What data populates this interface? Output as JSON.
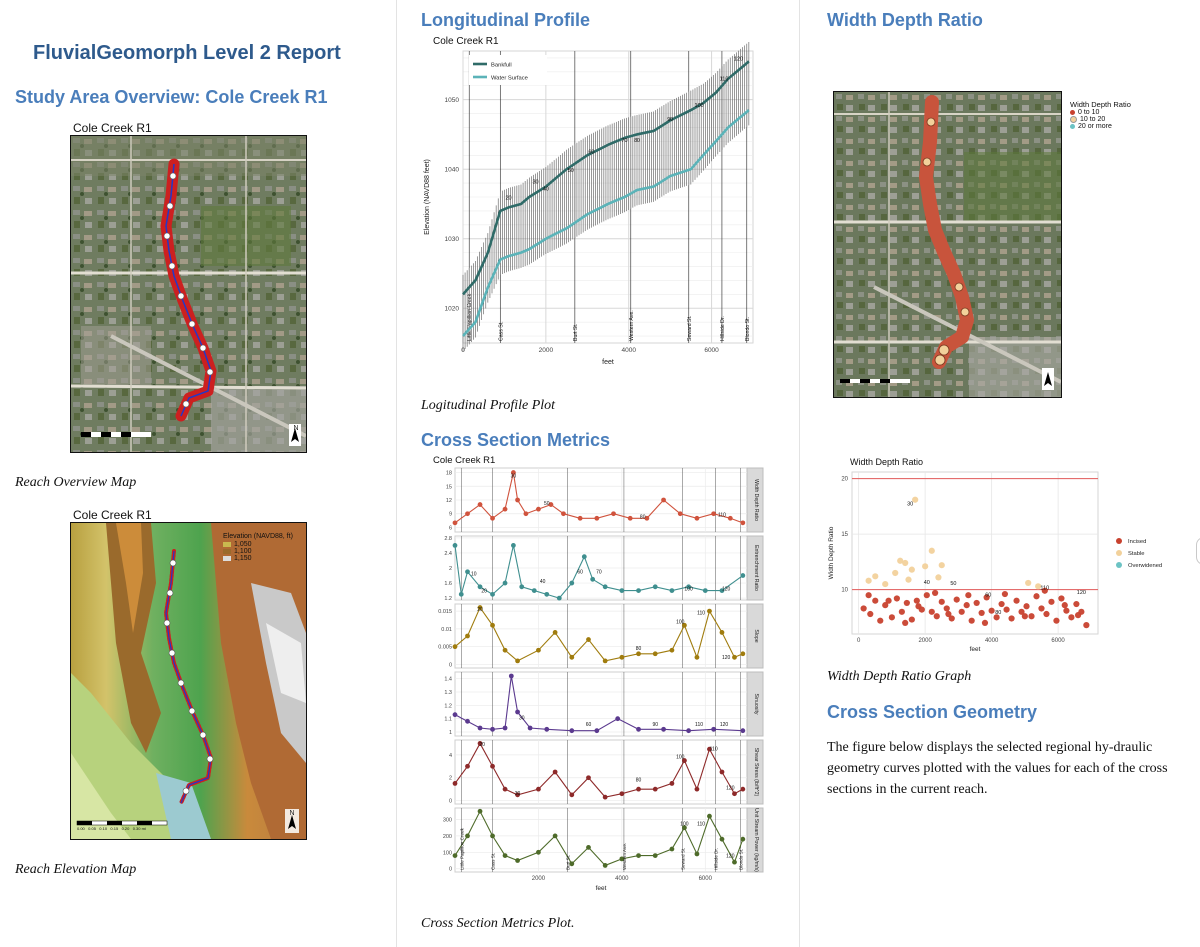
{
  "report": {
    "title": "FluvialGeomorph Level 2 Report"
  },
  "col1": {
    "study_heading": "Study Area Overview: Cole Creek R1",
    "overview_map": {
      "title": "Cole Creek R1",
      "caption": "Reach Overview Map",
      "north": "N"
    },
    "elevation_map": {
      "title": "Cole Creek R1",
      "caption": "Reach Elevation Map",
      "legend_title": "Elevation (NAVD88, ft)",
      "legend_items": [
        "1,050",
        "1,100",
        "1,150"
      ],
      "scale_labels": [
        "0.00",
        "0.05",
        "0.10",
        "0.15",
        "0.20",
        "0.30 mi"
      ],
      "north": "N"
    }
  },
  "col2": {
    "long_heading": "Longitudinal Profile",
    "long_caption": "Logitudinal Profile Plot",
    "xs_heading": "Cross Section Metrics",
    "xs_caption": "Cross Section Metrics Plot."
  },
  "col3": {
    "wdr_heading": "Width Depth Ratio",
    "wdr_map_legend_title": "Width Depth Ratio",
    "wdr_map_legend_items": [
      "0 to 10",
      "10 to 20",
      "20 or more"
    ],
    "wdr_caption": "Width Depth Ratio Graph",
    "geom_heading": "Cross Section Geometry",
    "geom_paragraph": "The figure below displays the selected regional hy-draulic geometry curves plotted with the values for each of the cross sections in the current reach."
  },
  "colors": {
    "title_blue": "#2E5A8C",
    "heading_blue": "#4A7EBB",
    "bankfull": "#2F6B68",
    "water_surface": "#5BB3B8",
    "incised": "#C8412E",
    "stable": "#F2D19B",
    "overwidened": "#6CC3C4"
  },
  "chart_data": [
    {
      "id": "longitudinal_profile",
      "type": "line",
      "title": "Cole Creek R1",
      "xlabel": "feet",
      "ylabel": "Elevation (NAVD88 feet)",
      "xlim": [
        0,
        7000
      ],
      "ylim": [
        1015,
        1057
      ],
      "x_ticks": [
        0,
        2000,
        4000,
        6000
      ],
      "y_ticks": [
        1020,
        1030,
        1040,
        1050
      ],
      "legend": [
        "Bankfull",
        "Water Surface"
      ],
      "legend_position": "top-left",
      "grid": true,
      "series": [
        {
          "name": "Bankfull",
          "x": [
            0,
            300,
            600,
            900,
            1100,
            1400,
            1600,
            2000,
            2500,
            3000,
            3500,
            3900,
            4200,
            4600,
            5000,
            5500,
            5800,
            6100,
            6400,
            6700,
            6900
          ],
          "y": [
            1022,
            1024,
            1028,
            1034,
            1034.5,
            1035,
            1036,
            1037.5,
            1040,
            1042,
            1043.5,
            1044.5,
            1045,
            1045.5,
            1047,
            1048.5,
            1049.5,
            1051,
            1053,
            1054.5,
            1055.5
          ]
        },
        {
          "name": "Water Surface",
          "x": [
            0,
            300,
            600,
            900,
            1100,
            1400,
            1600,
            2000,
            2500,
            3000,
            3500,
            3900,
            4200,
            4600,
            5000,
            5500,
            5800,
            6100,
            6400,
            6700,
            6900
          ],
          "y": [
            1016,
            1018,
            1023,
            1027,
            1027.5,
            1028,
            1028.5,
            1030,
            1031.5,
            1033.5,
            1035,
            1036,
            1037,
            1037.5,
            1039,
            1040,
            1042,
            1044,
            1046,
            1047.5,
            1048.5
          ]
        }
      ],
      "point_labels": [
        {
          "x": 1100,
          "y": 1035.2,
          "label": "20"
        },
        {
          "x": 1750,
          "y": 1037.5,
          "label": "30"
        },
        {
          "x": 2000,
          "y": 1036.5,
          "label": "40"
        },
        {
          "x": 2600,
          "y": 1039.2,
          "label": "50"
        },
        {
          "x": 3100,
          "y": 1041.8,
          "label": "60"
        },
        {
          "x": 3900,
          "y": 1043.5,
          "label": "70"
        },
        {
          "x": 4200,
          "y": 1043.5,
          "label": "80"
        },
        {
          "x": 5000,
          "y": 1046.5,
          "label": "90"
        },
        {
          "x": 5700,
          "y": 1048.5,
          "label": "100"
        },
        {
          "x": 6300,
          "y": 1052.3,
          "label": "110"
        },
        {
          "x": 6650,
          "y": 1055.2,
          "label": "120"
        }
      ],
      "features": [
        {
          "x": 150,
          "label": "Little Papillion Creek"
        },
        {
          "x": 900,
          "label": "Cass St."
        },
        {
          "x": 2700,
          "label": "Burt St."
        },
        {
          "x": 4050,
          "label": "Western Ave."
        },
        {
          "x": 5450,
          "label": "Seward St."
        },
        {
          "x": 6250,
          "label": "Hillside Dr."
        },
        {
          "x": 6850,
          "label": "Blondo St."
        }
      ]
    },
    {
      "id": "cross_section_metrics",
      "type": "line",
      "title": "Cole Creek R1",
      "xlabel": "feet",
      "xlim": [
        0,
        7000
      ],
      "x_ticks": [
        2000,
        4000,
        6000
      ],
      "grid": true,
      "features": [
        {
          "x": 150,
          "label": "Little Papillion Creek"
        },
        {
          "x": 900,
          "label": "Cass St."
        },
        {
          "x": 2700,
          "label": "Burt St."
        },
        {
          "x": 4050,
          "label": "Western Ave."
        },
        {
          "x": 5450,
          "label": "Seward St."
        },
        {
          "x": 6250,
          "label": "Hillside Dr."
        },
        {
          "x": 6850,
          "label": "Blondo St."
        }
      ],
      "facets": [
        {
          "name": "Width Depth Ratio",
          "color": "#D0533D",
          "ylim": [
            5,
            19
          ],
          "y_ticks": [
            6,
            9,
            12,
            15,
            18
          ],
          "x": [
            0,
            300,
            600,
            900,
            1200,
            1400,
            1500,
            1700,
            2000,
            2300,
            2600,
            3000,
            3400,
            3800,
            4200,
            4600,
            5000,
            5400,
            5800,
            6200,
            6600,
            6900
          ],
          "y": [
            7,
            9,
            11,
            8,
            10,
            18,
            12,
            9,
            10,
            11,
            9,
            8,
            8,
            9,
            8,
            8,
            12,
            9,
            8,
            9,
            8,
            7
          ],
          "labels": [
            {
              "x": 1400,
              "y": 16.5,
              "t": "30"
            },
            {
              "x": 2200,
              "y": 10.5,
              "t": "50"
            },
            {
              "x": 4500,
              "y": 7.5,
              "t": "80"
            },
            {
              "x": 6400,
              "y": 8,
              "t": "110"
            }
          ]
        },
        {
          "name": "Entrenchment Ratio",
          "color": "#3F8F8F",
          "ylim": [
            1.15,
            2.85
          ],
          "y_ticks": [
            1.2,
            1.6,
            2.0,
            2.4,
            2.8
          ],
          "x": [
            0,
            150,
            300,
            600,
            900,
            1200,
            1400,
            1600,
            1900,
            2200,
            2500,
            2800,
            3100,
            3300,
            3600,
            4000,
            4400,
            4800,
            5200,
            5600,
            6000,
            6400,
            6900
          ],
          "y": [
            2.6,
            1.3,
            1.9,
            1.5,
            1.3,
            1.6,
            2.6,
            1.5,
            1.4,
            1.3,
            1.2,
            1.6,
            2.3,
            1.7,
            1.5,
            1.4,
            1.4,
            1.5,
            1.4,
            1.5,
            1.4,
            1.4,
            1.8
          ],
          "labels": [
            {
              "x": 450,
              "y": 1.75,
              "t": "10"
            },
            {
              "x": 700,
              "y": 1.3,
              "t": "20"
            },
            {
              "x": 2100,
              "y": 1.55,
              "t": "40"
            },
            {
              "x": 3000,
              "y": 1.8,
              "t": "60"
            },
            {
              "x": 3450,
              "y": 1.8,
              "t": "70"
            },
            {
              "x": 5600,
              "y": 1.35,
              "t": "100"
            },
            {
              "x": 6500,
              "y": 1.35,
              "t": "120"
            }
          ]
        },
        {
          "name": "Slope",
          "color": "#A07C0E",
          "ylim": [
            -0.001,
            0.017
          ],
          "y_ticks": [
            0.0,
            0.005,
            0.01,
            0.015
          ],
          "x": [
            0,
            300,
            600,
            900,
            1200,
            1500,
            2000,
            2400,
            2800,
            3200,
            3600,
            4000,
            4400,
            4800,
            5200,
            5500,
            5800,
            6100,
            6400,
            6700,
            6900
          ],
          "y": [
            0.005,
            0.008,
            0.016,
            0.011,
            0.004,
            0.001,
            0.004,
            0.009,
            0.002,
            0.007,
            0.001,
            0.002,
            0.003,
            0.003,
            0.004,
            0.011,
            0.002,
            0.015,
            0.009,
            0.002,
            0.003
          ],
          "labels": [
            {
              "x": 600,
              "y": 0.0145,
              "t": "20"
            },
            {
              "x": 4400,
              "y": 0.0035,
              "t": "80"
            },
            {
              "x": 5400,
              "y": 0.011,
              "t": "100"
            },
            {
              "x": 5900,
              "y": 0.0135,
              "t": "110"
            },
            {
              "x": 6500,
              "y": 0.001,
              "t": "120"
            }
          ]
        },
        {
          "name": "Sinuosity",
          "color": "#5B3A8F",
          "ylim": [
            0.97,
            1.45
          ],
          "y_ticks": [
            1.0,
            1.1,
            1.2,
            1.3,
            1.4
          ],
          "x": [
            0,
            300,
            600,
            900,
            1200,
            1350,
            1500,
            1800,
            2200,
            2800,
            3400,
            3900,
            4400,
            5000,
            5600,
            6200,
            6900
          ],
          "y": [
            1.13,
            1.08,
            1.03,
            1.02,
            1.03,
            1.42,
            1.15,
            1.03,
            1.02,
            1.01,
            1.01,
            1.1,
            1.02,
            1.02,
            1.01,
            1.02,
            1.01
          ],
          "labels": [
            {
              "x": 1600,
              "y": 1.08,
              "t": "30"
            },
            {
              "x": 3200,
              "y": 1.03,
              "t": "60"
            },
            {
              "x": 4800,
              "y": 1.03,
              "t": "90"
            },
            {
              "x": 5850,
              "y": 1.03,
              "t": "110"
            },
            {
              "x": 6450,
              "y": 1.03,
              "t": "120"
            }
          ]
        },
        {
          "name": "Shear Stress (lb/ft^2)",
          "color": "#8E2A2A",
          "ylim": [
            -0.3,
            5.3
          ],
          "y_ticks": [
            0,
            2,
            4
          ],
          "x": [
            0,
            300,
            600,
            900,
            1200,
            1500,
            2000,
            2400,
            2800,
            3200,
            3600,
            4000,
            4400,
            4800,
            5200,
            5500,
            5800,
            6100,
            6400,
            6700,
            6900
          ],
          "y": [
            1.5,
            3,
            5,
            3,
            1,
            0.5,
            1,
            2.5,
            0.5,
            2,
            0.3,
            0.6,
            1,
            1,
            1.5,
            3.5,
            1,
            4.5,
            2.5,
            0.6,
            1
          ],
          "labels": [
            {
              "x": 650,
              "y": 4.6,
              "t": "20"
            },
            {
              "x": 1500,
              "y": 0.3,
              "t": "30"
            },
            {
              "x": 4400,
              "y": 1.5,
              "t": "80"
            },
            {
              "x": 5400,
              "y": 3.5,
              "t": "100"
            },
            {
              "x": 6200,
              "y": 4.2,
              "t": "110"
            },
            {
              "x": 6600,
              "y": 0.8,
              "t": "120"
            }
          ]
        },
        {
          "name": "Unit Stream Power (kg/m/s)",
          "color": "#4E6B2A",
          "ylim": [
            -20,
            370
          ],
          "y_ticks": [
            0,
            100,
            200,
            300
          ],
          "x": [
            0,
            300,
            600,
            900,
            1200,
            1500,
            2000,
            2400,
            2800,
            3200,
            3600,
            4000,
            4400,
            4800,
            5200,
            5500,
            5800,
            6100,
            6400,
            6700,
            6900
          ],
          "y": [
            80,
            200,
            350,
            200,
            80,
            50,
            100,
            200,
            30,
            130,
            20,
            60,
            80,
            80,
            120,
            250,
            90,
            320,
            180,
            40,
            180
          ],
          "labels": [
            {
              "x": 5500,
              "y": 250,
              "t": "100"
            },
            {
              "x": 5900,
              "y": 250,
              "t": "110"
            },
            {
              "x": 6600,
              "y": 55,
              "t": "120"
            }
          ]
        }
      ]
    },
    {
      "id": "width_depth_ratio",
      "type": "scatter",
      "title": "Width Depth Ratio",
      "xlabel": "feet",
      "ylabel": "Width Depth Ratio",
      "xlim": [
        -200,
        7200
      ],
      "ylim": [
        6,
        20.6
      ],
      "x_ticks": [
        0,
        2000,
        4000,
        6000
      ],
      "y_ticks": [
        10,
        15,
        20
      ],
      "reference_lines": [
        10,
        20
      ],
      "grid": true,
      "legend": [
        "Incised",
        "Stable",
        "Overwidened"
      ],
      "legend_position": "right",
      "series": [
        {
          "name": "Incised",
          "x": [
            150,
            350,
            500,
            650,
            800,
            1000,
            1150,
            1300,
            1450,
            1600,
            1750,
            1900,
            2050,
            2200,
            2350,
            2500,
            2650,
            2800,
            2950,
            3100,
            3250,
            3400,
            3550,
            3700,
            3850,
            4000,
            4150,
            4300,
            4450,
            4600,
            4750,
            4900,
            5050,
            5200,
            5350,
            5500,
            5650,
            5800,
            5950,
            6100,
            6250,
            6400,
            6550,
            6700,
            6850,
            300,
            900,
            1400,
            1800,
            2300,
            2700,
            3300,
            3800,
            4400,
            5000,
            5600,
            6200,
            6600
          ],
          "y": [
            8.3,
            7.8,
            9.0,
            7.2,
            8.6,
            7.5,
            9.2,
            8.0,
            8.8,
            7.3,
            9.0,
            8.2,
            9.5,
            8.0,
            7.6,
            8.9,
            8.3,
            7.4,
            9.1,
            8.0,
            8.6,
            7.2,
            8.8,
            7.9,
            9.3,
            8.1,
            7.5,
            8.7,
            8.2,
            7.4,
            9.0,
            8.0,
            8.5,
            7.6,
            9.4,
            8.3,
            7.8,
            8.9,
            7.2,
            9.2,
            8.1,
            7.5,
            8.7,
            8.0,
            6.8,
            9.5,
            9.0,
            7.0,
            8.5,
            9.7,
            7.8,
            9.5,
            7.0,
            9.6,
            7.6,
            9.9,
            8.6,
            7.7
          ]
        },
        {
          "name": "Stable",
          "x": [
            300,
            500,
            800,
            1100,
            1250,
            1400,
            1500,
            1600,
            2000,
            2200,
            2400,
            2500,
            5100,
            5400,
            1700
          ],
          "y": [
            10.8,
            11.2,
            10.5,
            11.5,
            12.6,
            12.4,
            10.9,
            11.8,
            12.1,
            13.5,
            11.1,
            12.2,
            10.6,
            10.3,
            18.1
          ]
        },
        {
          "name": "Overwidened",
          "x": [],
          "y": []
        }
      ],
      "point_labels": [
        {
          "x": 1550,
          "y": 17.6,
          "label": "30"
        },
        {
          "x": 2050,
          "y": 10.5,
          "label": "40"
        },
        {
          "x": 2850,
          "y": 10.4,
          "label": "50"
        },
        {
          "x": 5600,
          "y": 10.0,
          "label": "110"
        },
        {
          "x": 6700,
          "y": 9.6,
          "label": "120"
        },
        {
          "x": 3900,
          "y": 9.4,
          "label": "60"
        },
        {
          "x": 4200,
          "y": 7.8,
          "label": "80"
        }
      ]
    }
  ]
}
